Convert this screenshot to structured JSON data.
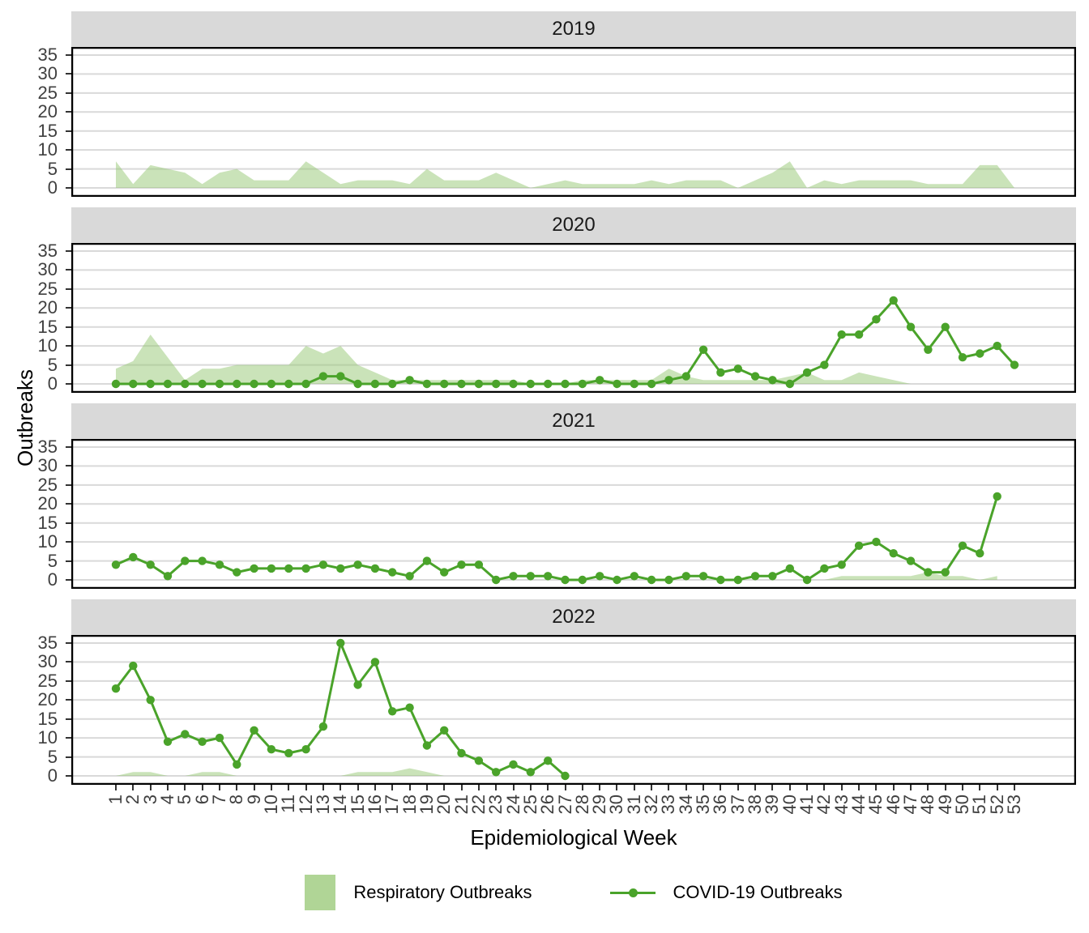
{
  "chart_data": {
    "type": "area",
    "subtype": "faceted-area-and-line",
    "title": "",
    "xlabel": "Epidemiological Week",
    "ylabel": "Outbreaks",
    "x_ticks": [
      1,
      2,
      3,
      4,
      5,
      6,
      7,
      8,
      9,
      10,
      11,
      12,
      13,
      14,
      15,
      16,
      17,
      18,
      19,
      20,
      21,
      22,
      23,
      24,
      25,
      26,
      27,
      28,
      29,
      30,
      31,
      32,
      33,
      34,
      35,
      36,
      37,
      38,
      39,
      40,
      41,
      42,
      43,
      44,
      45,
      46,
      47,
      48,
      49,
      50,
      51,
      52,
      53
    ],
    "y_ticks": [
      0,
      5,
      10,
      15,
      20,
      25,
      30,
      35
    ],
    "ylim": [
      0,
      35
    ],
    "grid": true,
    "legend_position": "bottom",
    "series_legend": [
      {
        "name": "Respiratory Outbreaks",
        "type": "area"
      },
      {
        "name": "COVID-19 Outbreaks",
        "type": "line-point"
      }
    ],
    "facets": [
      {
        "label": "2019",
        "respiratory": [
          7,
          1,
          6,
          5,
          4,
          1,
          4,
          5,
          2,
          2,
          2,
          7,
          4,
          1,
          2,
          2,
          2,
          1,
          5,
          2,
          2,
          2,
          4,
          2,
          0,
          1,
          2,
          1,
          1,
          1,
          1,
          2,
          1,
          2,
          2,
          2,
          0,
          2,
          4,
          7,
          0,
          2,
          1,
          2,
          2,
          2,
          2,
          1,
          1,
          1,
          6,
          6,
          0
        ],
        "covid": []
      },
      {
        "label": "2020",
        "respiratory": [
          4,
          6,
          13,
          7,
          1,
          4,
          4,
          5,
          5,
          5,
          5,
          10,
          8,
          10,
          5,
          3,
          1,
          1,
          1,
          1,
          1,
          1,
          1,
          1,
          0,
          0,
          0,
          1,
          1,
          1,
          1,
          1,
          4,
          2,
          1,
          1,
          1,
          1,
          1,
          2,
          3,
          1,
          1,
          3,
          2,
          1,
          0,
          0,
          0,
          0,
          0,
          0,
          0
        ],
        "covid": [
          0,
          0,
          0,
          0,
          0,
          0,
          0,
          0,
          0,
          0,
          0,
          0,
          2,
          2,
          0,
          0,
          0,
          1,
          0,
          0,
          0,
          0,
          0,
          0,
          0,
          0,
          0,
          0,
          1,
          0,
          0,
          0,
          1,
          2,
          9,
          3,
          4,
          2,
          1,
          0,
          3,
          5,
          13,
          13,
          17,
          22,
          15,
          9,
          15,
          7,
          8,
          10,
          5
        ]
      },
      {
        "label": "2021",
        "respiratory": [
          0,
          0,
          0,
          0,
          0,
          0,
          0,
          0,
          0,
          0,
          0,
          0,
          0,
          0,
          0,
          0,
          0,
          0,
          0,
          0,
          0,
          0,
          0,
          0,
          0,
          0,
          0,
          0,
          0,
          0,
          0,
          0,
          0,
          0,
          0,
          0,
          0,
          0,
          0,
          0,
          0,
          0,
          1,
          1,
          1,
          1,
          1,
          2,
          1,
          1,
          0,
          1
        ],
        "covid": [
          4,
          6,
          4,
          1,
          5,
          5,
          4,
          2,
          3,
          3,
          3,
          3,
          4,
          3,
          4,
          3,
          2,
          1,
          5,
          2,
          4,
          4,
          0,
          1,
          1,
          1,
          0,
          0,
          1,
          0,
          1,
          0,
          0,
          1,
          1,
          0,
          0,
          1,
          1,
          3,
          0,
          3,
          4,
          9,
          10,
          7,
          5,
          2,
          2,
          9,
          7,
          22
        ]
      },
      {
        "label": "2022",
        "respiratory": [
          0,
          1,
          1,
          0,
          0,
          1,
          1,
          0,
          0,
          0,
          0,
          0,
          0,
          0,
          1,
          1,
          1,
          2,
          1,
          0,
          0,
          0,
          0,
          0,
          0,
          0,
          0
        ],
        "covid": [
          23,
          29,
          20,
          9,
          11,
          9,
          10,
          3,
          12,
          7,
          6,
          7,
          13,
          35,
          24,
          30,
          17,
          18,
          8,
          12,
          6,
          4,
          1,
          3,
          1,
          4,
          0
        ]
      }
    ],
    "colors": {
      "line": "#4aa32a",
      "area_fill": "#95c773",
      "area_opacity": 0.5,
      "strip_bg": "#d9d9d9",
      "grid": "#d9d9d9",
      "tick_text": "#404040",
      "axis_line": "#000000"
    }
  }
}
